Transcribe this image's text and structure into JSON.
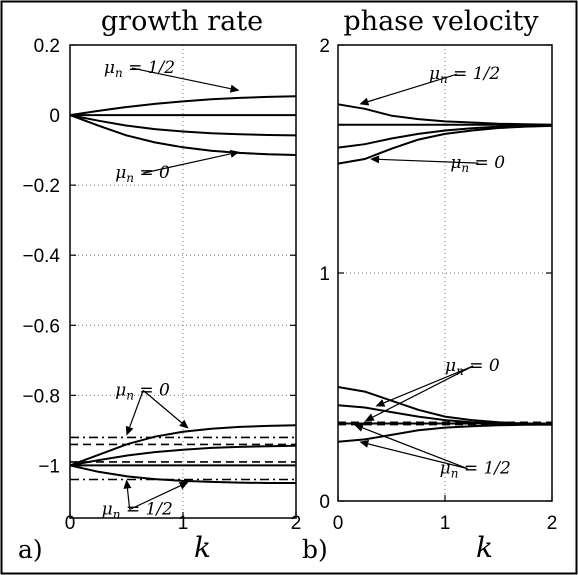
{
  "chart_data": [
    {
      "panel_label": "a)",
      "title": "growth rate",
      "xlabel": "k",
      "type": "line",
      "xlim": [
        0,
        2
      ],
      "ylim": [
        -1.15,
        0.2
      ],
      "x_ticks": [
        "0",
        "1",
        "2"
      ],
      "y_ticks": [
        {
          "value": 0.2,
          "label": "0.2"
        },
        {
          "value": 0,
          "label": "0"
        },
        {
          "value": -0.2,
          "label": "−0.2"
        },
        {
          "value": -0.4,
          "label": "−0.4"
        },
        {
          "value": -0.6,
          "label": "−0.6"
        },
        {
          "value": -0.8,
          "label": "−0.8"
        },
        {
          "value": -1,
          "label": "−1"
        }
      ],
      "grid": true,
      "x": [
        0,
        0.25,
        0.5,
        0.75,
        1.0,
        1.25,
        1.5,
        1.75,
        2.0
      ],
      "series": [
        {
          "style": "solid",
          "values": [
            0,
            0.012,
            0.023,
            0.032,
            0.039,
            0.045,
            0.049,
            0.052,
            0.054
          ]
        },
        {
          "style": "solid",
          "values": [
            0,
            0,
            0,
            0,
            0,
            0,
            0,
            0,
            0
          ]
        },
        {
          "style": "solid",
          "values": [
            0,
            -0.016,
            -0.03,
            -0.04,
            -0.047,
            -0.052,
            -0.055,
            -0.057,
            -0.058
          ]
        },
        {
          "style": "solid",
          "values": [
            0,
            -0.03,
            -0.058,
            -0.078,
            -0.092,
            -0.102,
            -0.108,
            -0.112,
            -0.114
          ]
        },
        {
          "style": "dashed",
          "values": [
            0,
            -0.03,
            -0.058,
            -0.078,
            -0.092,
            -0.102,
            -0.108,
            -0.112,
            -0.114
          ]
        },
        {
          "style": "solid",
          "values": [
            -1,
            -0.97,
            -0.94,
            -0.918,
            -0.904,
            -0.895,
            -0.89,
            -0.887,
            -0.885
          ]
        },
        {
          "style": "solid",
          "values": [
            -1,
            -0.985,
            -0.972,
            -0.962,
            -0.955,
            -0.95,
            -0.947,
            -0.945,
            -0.944
          ]
        },
        {
          "style": "solid",
          "values": [
            -1,
            -1,
            -1,
            -1,
            -1,
            -1,
            -1,
            -1,
            -1
          ]
        },
        {
          "style": "solid",
          "values": [
            -1,
            -1.018,
            -1.031,
            -1.039,
            -1.044,
            -1.047,
            -1.049,
            -1.05,
            -1.05
          ]
        },
        {
          "style": "dashed",
          "values": [
            -0.94,
            -0.94,
            -0.94,
            -0.94,
            -0.94,
            -0.94,
            -0.94,
            -0.94,
            -0.94
          ]
        },
        {
          "style": "dashed",
          "values": [
            -0.99,
            -0.99,
            -0.99,
            -0.99,
            -0.99,
            -0.99,
            -0.99,
            -0.99,
            -0.99
          ]
        },
        {
          "style": "dashdot",
          "values": [
            -0.92,
            -0.92,
            -0.92,
            -0.92,
            -0.92,
            -0.92,
            -0.92,
            -0.92,
            -0.92
          ]
        },
        {
          "style": "dashdot",
          "values": [
            -1.04,
            -1.04,
            -1.04,
            -1.04,
            -1.04,
            -1.04,
            -1.04,
            -1.04,
            -1.04
          ]
        }
      ],
      "annotations": [
        {
          "main": "μ",
          "sub": "n",
          "rest": " = 1/2",
          "x": 0.3,
          "y": 0.12,
          "arrows": [
            [
              1.5,
              0.07
            ]
          ]
        },
        {
          "main": "μ",
          "sub": "n",
          "rest": " = 0",
          "x": 0.4,
          "y": -0.18,
          "arrows": [
            [
              1.5,
              -0.105
            ]
          ]
        },
        {
          "main": "μ",
          "sub": "n",
          "rest": " = 0",
          "x": 0.4,
          "y": -0.8,
          "arrows": [
            [
              0.5,
              -0.915
            ],
            [
              1.05,
              -0.895
            ]
          ]
        },
        {
          "main": "μ",
          "sub": "n",
          "rest": " = 1/2",
          "x": 0.28,
          "y": -1.14,
          "arrows": [
            [
              0.5,
              -1.04
            ],
            [
              1.05,
              -1.047
            ]
          ]
        }
      ]
    },
    {
      "panel_label": "b)",
      "title": "phase velocity",
      "xlabel": "k",
      "type": "line",
      "xlim": [
        0,
        2
      ],
      "ylim": [
        0,
        2
      ],
      "x_ticks": [
        "0",
        "1",
        "2"
      ],
      "y_ticks": [
        {
          "value": 0,
          "label": "0"
        },
        {
          "value": 1,
          "label": "1"
        },
        {
          "value": 2,
          "label": "2"
        }
      ],
      "grid": true,
      "x": [
        0,
        0.25,
        0.5,
        0.75,
        1.0,
        1.25,
        1.5,
        1.75,
        2.0
      ],
      "series": [
        {
          "style": "solid",
          "values": [
            1.74,
            1.72,
            1.69,
            1.675,
            1.665,
            1.66,
            1.655,
            1.652,
            1.65
          ]
        },
        {
          "style": "solid",
          "values": [
            1.65,
            1.65,
            1.65,
            1.65,
            1.65,
            1.65,
            1.65,
            1.65,
            1.65
          ]
        },
        {
          "style": "solid",
          "values": [
            1.55,
            1.565,
            1.59,
            1.61,
            1.625,
            1.635,
            1.642,
            1.646,
            1.648
          ]
        },
        {
          "style": "solid",
          "values": [
            1.48,
            1.5,
            1.545,
            1.585,
            1.61,
            1.625,
            1.636,
            1.642,
            1.645
          ]
        },
        {
          "style": "dashed",
          "values": [
            1.48,
            1.5,
            1.545,
            1.585,
            1.61,
            1.625,
            1.636,
            1.642,
            1.645
          ]
        },
        {
          "style": "solid",
          "values": [
            0.5,
            0.48,
            0.44,
            0.4,
            0.37,
            0.355,
            0.345,
            0.34,
            0.338
          ]
        },
        {
          "style": "solid",
          "values": [
            0.42,
            0.41,
            0.39,
            0.37,
            0.355,
            0.345,
            0.34,
            0.337,
            0.335
          ]
        },
        {
          "style": "solid",
          "values": [
            0.34,
            0.34,
            0.34,
            0.34,
            0.34,
            0.34,
            0.34,
            0.34,
            0.34
          ]
        },
        {
          "style": "solid",
          "values": [
            0.26,
            0.27,
            0.29,
            0.31,
            0.322,
            0.328,
            0.332,
            0.334,
            0.335
          ]
        },
        {
          "style": "dashed",
          "values": [
            0.335,
            0.335,
            0.335,
            0.335,
            0.335,
            0.335,
            0.335,
            0.335,
            0.335
          ]
        },
        {
          "style": "dashed",
          "values": [
            0.345,
            0.345,
            0.345,
            0.345,
            0.345,
            0.345,
            0.345,
            0.345,
            0.345
          ]
        }
      ],
      "annotations": [
        {
          "main": "μ",
          "sub": "n",
          "rest": " = 1/2",
          "x": 0.85,
          "y": 1.85,
          "arrows": [
            [
              0.2,
              1.74
            ]
          ]
        },
        {
          "main": "μ",
          "sub": "n",
          "rest": " = 0",
          "x": 1.05,
          "y": 1.46,
          "arrows": [
            [
              0.3,
              1.5
            ]
          ]
        },
        {
          "main": "μ",
          "sub": "n",
          "rest": " = 0",
          "x": 1.0,
          "y": 0.57,
          "arrows": [
            [
              0.35,
              0.415
            ],
            [
              0.25,
              0.35
            ]
          ]
        },
        {
          "main": "μ",
          "sub": "n",
          "rest": " = 1/2",
          "x": 0.95,
          "y": 0.12,
          "arrows": [
            [
              0.2,
              0.26
            ],
            [
              0.15,
              0.335
            ]
          ]
        }
      ]
    }
  ]
}
